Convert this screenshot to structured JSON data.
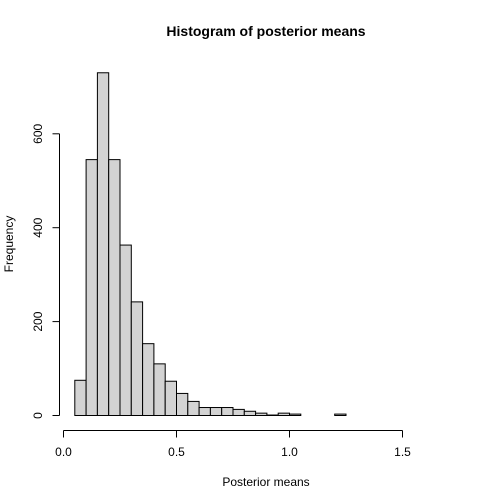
{
  "chart_data": {
    "type": "bar",
    "title": "Histogram of posterior means",
    "xlabel": "Posterior means",
    "ylabel": "Frequency",
    "xlim": [
      0,
      1.75
    ],
    "ylim": [
      0,
      750
    ],
    "bin_width": 0.05,
    "bins": [
      {
        "start": 0.05,
        "end": 0.1,
        "count": 75
      },
      {
        "start": 0.1,
        "end": 0.15,
        "count": 545
      },
      {
        "start": 0.15,
        "end": 0.2,
        "count": 730
      },
      {
        "start": 0.2,
        "end": 0.25,
        "count": 545
      },
      {
        "start": 0.25,
        "end": 0.3,
        "count": 363
      },
      {
        "start": 0.3,
        "end": 0.35,
        "count": 242
      },
      {
        "start": 0.35,
        "end": 0.4,
        "count": 153
      },
      {
        "start": 0.4,
        "end": 0.45,
        "count": 110
      },
      {
        "start": 0.45,
        "end": 0.5,
        "count": 73
      },
      {
        "start": 0.5,
        "end": 0.55,
        "count": 47
      },
      {
        "start": 0.55,
        "end": 0.6,
        "count": 30
      },
      {
        "start": 0.6,
        "end": 0.65,
        "count": 17
      },
      {
        "start": 0.65,
        "end": 0.7,
        "count": 17
      },
      {
        "start": 0.7,
        "end": 0.75,
        "count": 17
      },
      {
        "start": 0.75,
        "end": 0.8,
        "count": 13
      },
      {
        "start": 0.8,
        "end": 0.85,
        "count": 9
      },
      {
        "start": 0.85,
        "end": 0.9,
        "count": 5
      },
      {
        "start": 0.9,
        "end": 0.95,
        "count": 1
      },
      {
        "start": 0.95,
        "end": 1.0,
        "count": 5
      },
      {
        "start": 1.0,
        "end": 1.05,
        "count": 3
      },
      {
        "start": 1.05,
        "end": 1.1,
        "count": 0
      },
      {
        "start": 1.1,
        "end": 1.15,
        "count": 0
      },
      {
        "start": 1.15,
        "end": 1.2,
        "count": 0
      },
      {
        "start": 1.2,
        "end": 1.25,
        "count": 3
      },
      {
        "start": 1.25,
        "end": 1.3,
        "count": 0
      },
      {
        "start": 1.3,
        "end": 1.35,
        "count": 0
      },
      {
        "start": 1.35,
        "end": 1.4,
        "count": 0
      },
      {
        "start": 1.4,
        "end": 1.45,
        "count": 0
      },
      {
        "start": 1.45,
        "end": 1.5,
        "count": 0
      },
      {
        "start": 1.5,
        "end": 1.55,
        "count": 0
      },
      {
        "start": 1.55,
        "end": 1.6,
        "count": 0
      },
      {
        "start": 1.6,
        "end": 1.65,
        "count": 0
      },
      {
        "start": 1.65,
        "end": 1.7,
        "count": 0
      },
      {
        "start": 1.7,
        "end": 1.75,
        "count": 0
      }
    ],
    "x_ticks": [
      0.0,
      0.5,
      1.0,
      1.5
    ],
    "x_tick_labels": [
      "0.0",
      "0.5",
      "1.0",
      "1.5"
    ],
    "y_ticks": [
      0,
      200,
      400,
      600
    ],
    "y_tick_labels": [
      "0",
      "200",
      "400",
      "600"
    ],
    "colors": {
      "bar_fill": "#d3d3d3",
      "bar_stroke": "#000000"
    }
  }
}
